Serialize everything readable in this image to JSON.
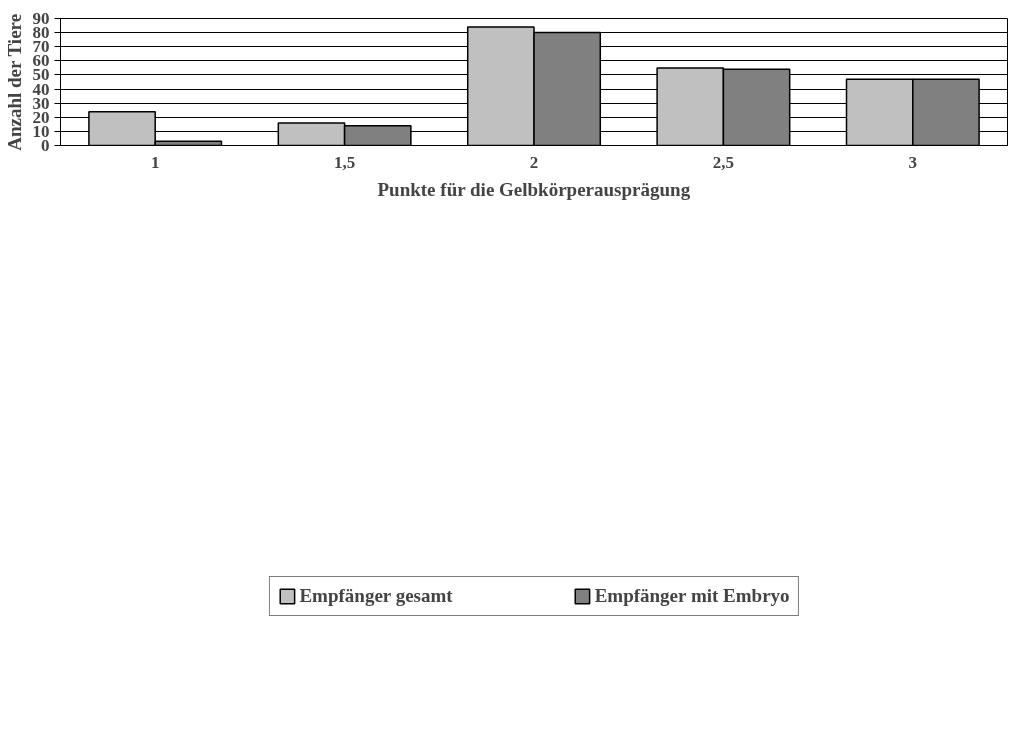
{
  "chart_data": {
    "type": "bar",
    "xlabel": "Punkte für die Gelbkörperausprägung",
    "ylabel": "Anzahl der Tiere",
    "categories": [
      "1",
      "1,5",
      "2",
      "2,5",
      "3"
    ],
    "series": [
      {
        "name": "Empfänger gesamt",
        "color": "#c0c0c0",
        "values": [
          24,
          16,
          84,
          55,
          47
        ]
      },
      {
        "name": "Empfänger mit Embryo",
        "color": "#808080",
        "values": [
          3,
          14,
          80,
          54,
          47
        ]
      }
    ],
    "ylim": [
      0,
      90
    ],
    "yticks": [
      0,
      10,
      20,
      30,
      40,
      50,
      60,
      70,
      80,
      90
    ],
    "grid": "y",
    "legend": "bottom"
  }
}
